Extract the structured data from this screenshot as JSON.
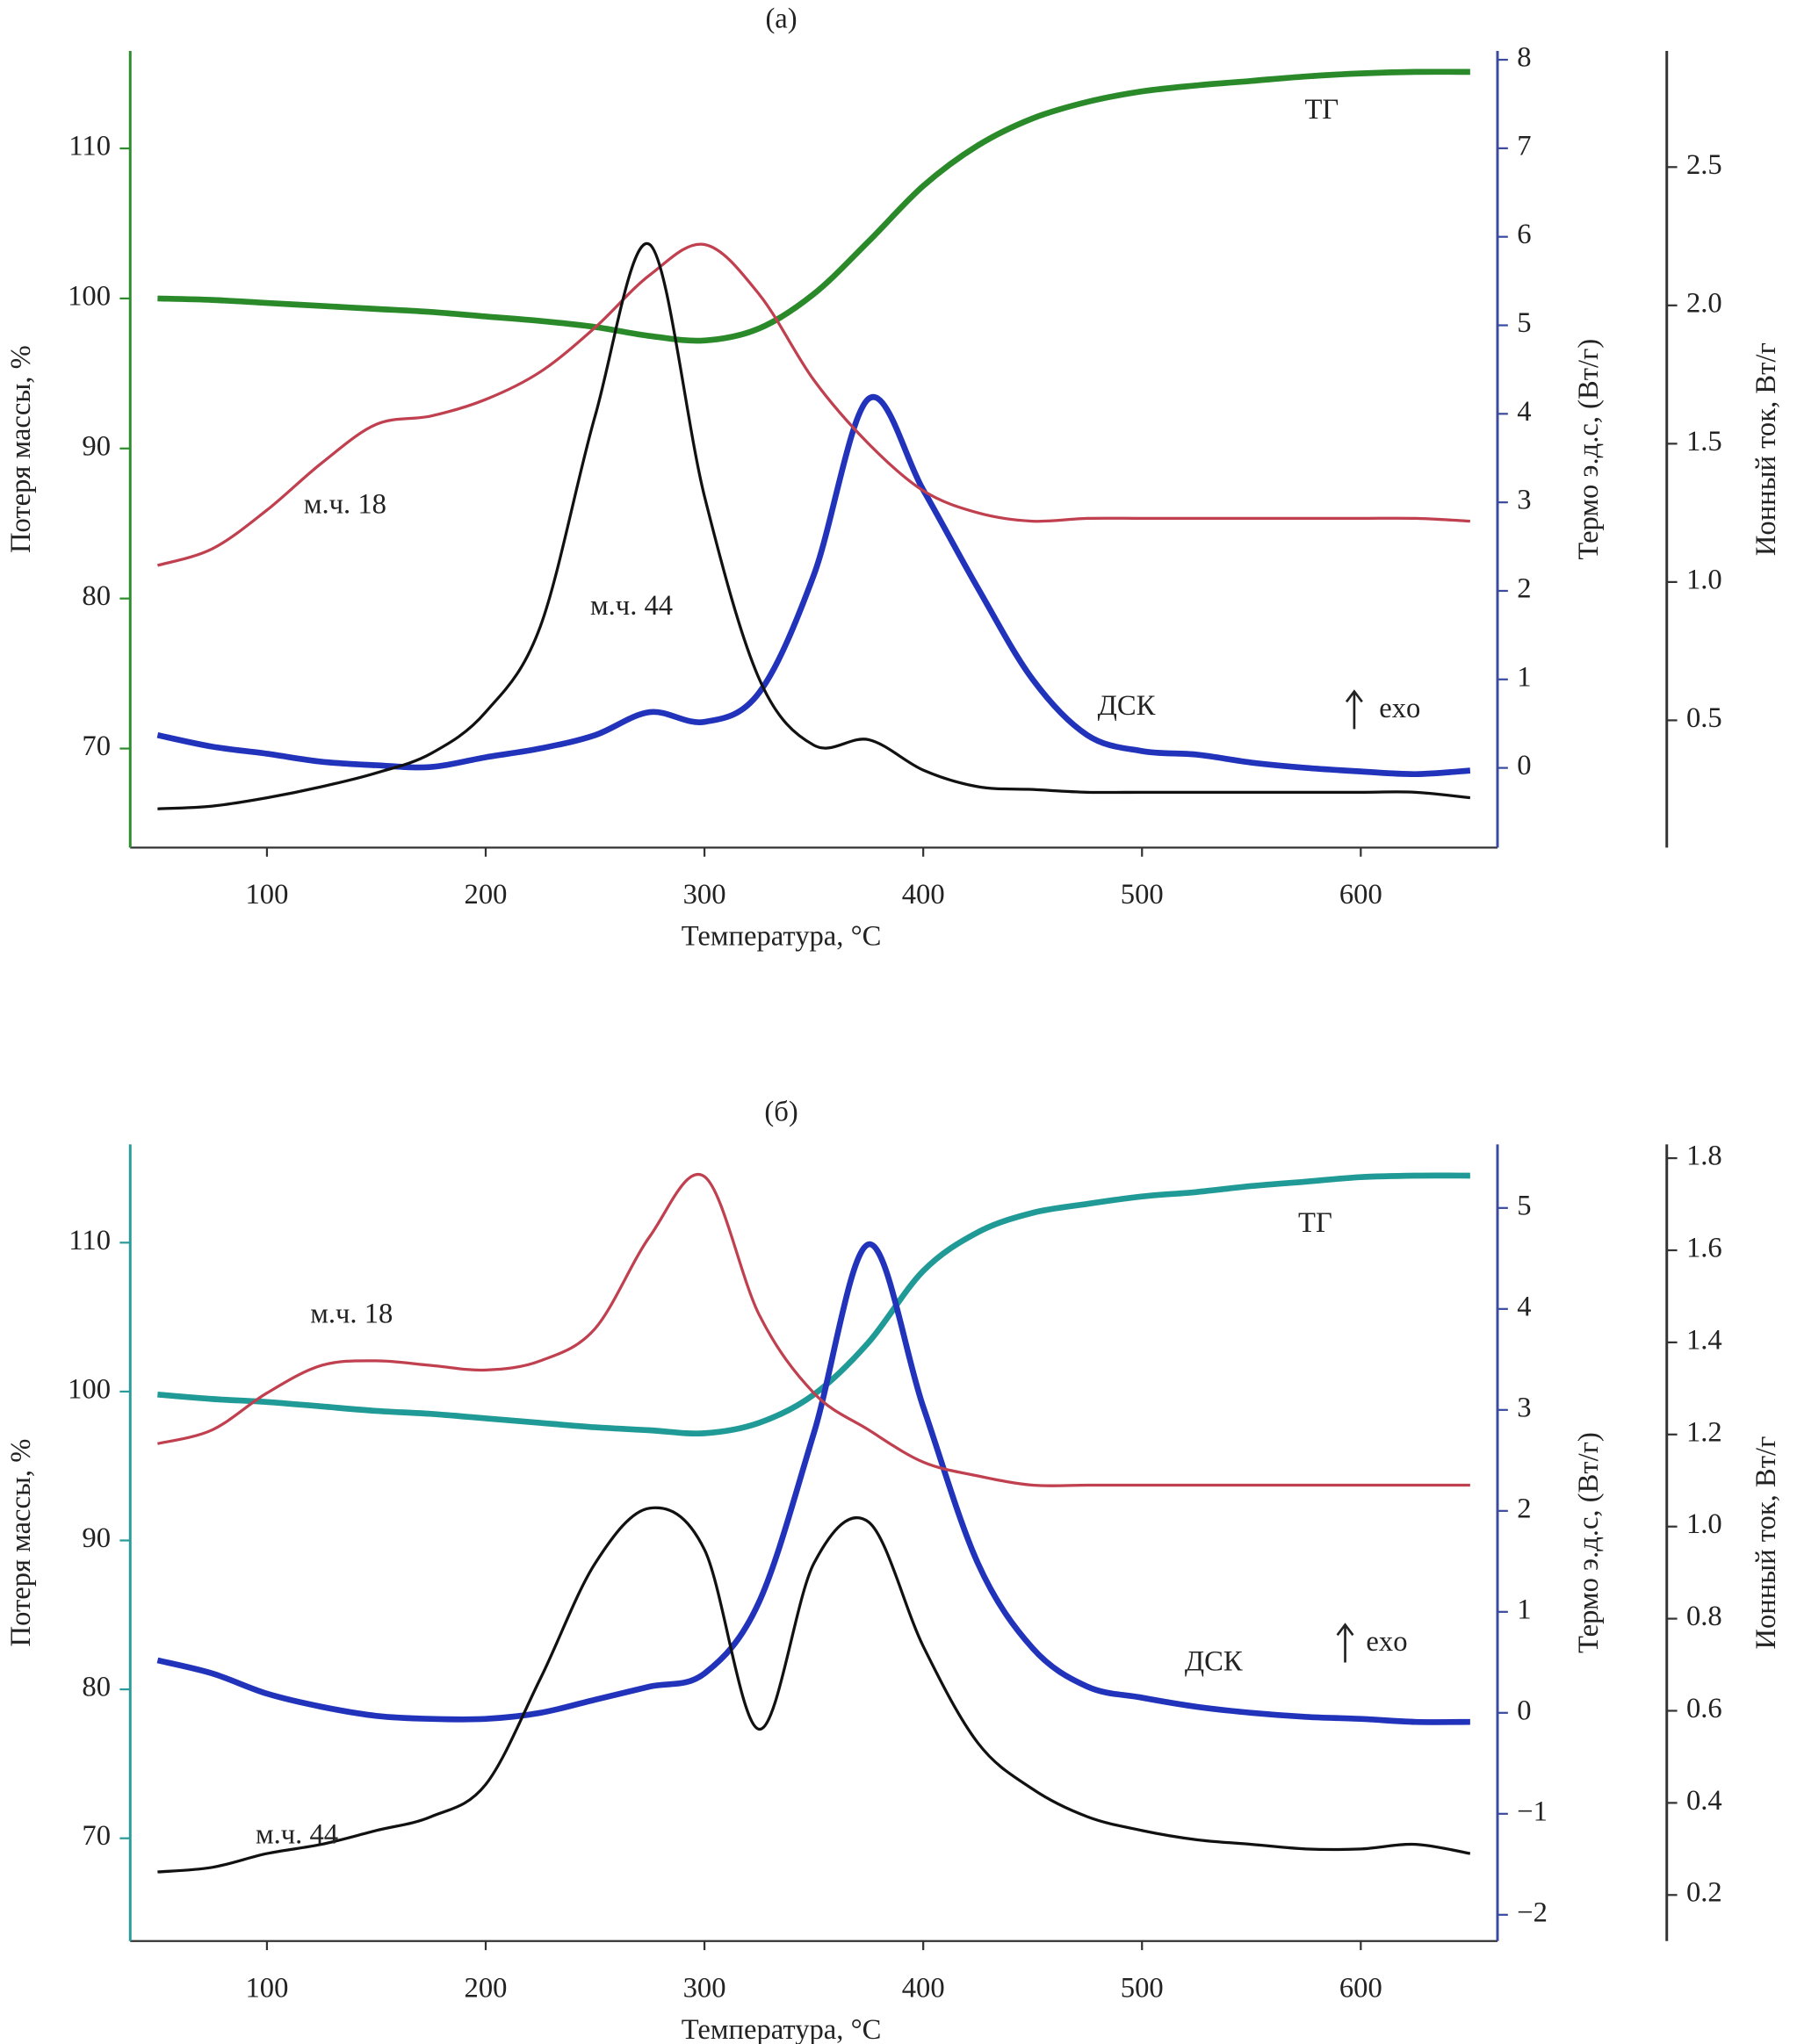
{
  "chart_data": [
    {
      "type": "line",
      "title": "(а)",
      "xlabel": "Температура, °C",
      "ylabel": "Потеря массы, %",
      "y2label": "Термо э.д.с, (Вт/г)",
      "y3label": "Ионный ток, Вт/г",
      "x": [
        50,
        75,
        100,
        125,
        150,
        175,
        200,
        225,
        250,
        275,
        300,
        325,
        350,
        375,
        400,
        425,
        450,
        475,
        500,
        525,
        550,
        575,
        600,
        625,
        650
      ],
      "xlim": [
        37.5,
        662.5
      ],
      "xticks": [
        100,
        200,
        300,
        400,
        500,
        600
      ],
      "ylim": [
        63.4,
        116.5
      ],
      "yticks": [
        70,
        80,
        90,
        100,
        110
      ],
      "y_axis_color": "#2e8b2e",
      "y2lim": [
        -0.9,
        8.1
      ],
      "y2ticks": [
        0,
        1,
        2,
        3,
        4,
        5,
        6,
        7,
        8
      ],
      "y2_axis_color": "#3a4aa0",
      "y3lim": [
        0.04,
        2.92
      ],
      "y3ticks": [
        0.5,
        {
          "value": 1,
          "label": "1.0"
        },
        1.5,
        {
          "value": 2,
          "label": "2.0"
        },
        2.5
      ],
      "y3_axis_color": "#333333",
      "series": [
        {
          "name": "ТГ",
          "color": "#2a8a2a",
          "axis": "y",
          "values": [
            100.0,
            99.9,
            99.7,
            99.5,
            99.3,
            99.1,
            98.8,
            98.5,
            98.1,
            97.5,
            97.2,
            98.0,
            100.3,
            103.8,
            107.5,
            110.2,
            112.0,
            113.1,
            113.8,
            114.2,
            114.5,
            114.8,
            115.0,
            115.1,
            115.1
          ]
        },
        {
          "name": "ДСК",
          "color": "#2233bb",
          "axis": "y2",
          "values": [
            0.37,
            0.24,
            0.16,
            0.07,
            0.03,
            0.01,
            0.12,
            0.22,
            0.37,
            0.63,
            0.52,
            0.85,
            2.18,
            4.17,
            3.14,
            2.03,
            1.0,
            0.37,
            0.19,
            0.15,
            0.06,
            0,
            -0.04,
            -0.07,
            -0.03
          ]
        },
        {
          "name": "м.ч. 18",
          "color": "#c0404f",
          "axis": "y3",
          "values": [
            1.06,
            1.12,
            1.26,
            1.43,
            1.57,
            1.6,
            1.66,
            1.76,
            1.92,
            2.11,
            2.22,
            2.04,
            1.73,
            1.5,
            1.33,
            1.25,
            1.22,
            1.23,
            1.23,
            1.23,
            1.23,
            1.23,
            1.23,
            1.23,
            1.22
          ]
        },
        {
          "name": "м.ч. 44",
          "color": "#111111",
          "axis": "y3",
          "values": [
            0.18,
            0.19,
            0.22,
            0.26,
            0.31,
            0.38,
            0.53,
            0.84,
            1.6,
            2.22,
            1.31,
            0.65,
            0.41,
            0.43,
            0.32,
            0.26,
            0.25,
            0.24,
            0.24,
            0.24,
            0.24,
            0.24,
            0.24,
            0.24,
            0.22
          ]
        }
      ],
      "annotation": "exo"
    },
    {
      "type": "line",
      "title": "(б)",
      "xlabel": "Температура, °C",
      "ylabel": "Потеря массы, %",
      "y2label": "Термо э.д.с, (Вт/г)",
      "y3label": "Ионный ток, Вт/г",
      "x": [
        50,
        75,
        100,
        125,
        150,
        175,
        200,
        225,
        250,
        275,
        300,
        325,
        350,
        375,
        400,
        425,
        450,
        475,
        500,
        525,
        550,
        575,
        600,
        625,
        650
      ],
      "xlim": [
        37.5,
        662.5
      ],
      "xticks": [
        100,
        200,
        300,
        400,
        500,
        600
      ],
      "ylim": [
        63.1,
        116.6
      ],
      "yticks": [
        70,
        80,
        90,
        100,
        110
      ],
      "y_axis_color": "#2a9a9a",
      "y2lim": [
        -2.26,
        5.63
      ],
      "y2ticks": [
        {
          "value": -2,
          "label": "−2"
        },
        {
          "value": -1,
          "label": "−1"
        },
        0,
        1,
        2,
        3,
        4,
        5
      ],
      "y2_axis_color": "#3a4aa0",
      "y3lim": [
        0.1,
        1.83
      ],
      "y3ticks": [
        0.2,
        0.4,
        0.6,
        0.8,
        {
          "value": 1,
          "label": "1.0"
        },
        1.2,
        1.4,
        1.6,
        1.8
      ],
      "y3_axis_color": "#333333",
      "series": [
        {
          "name": "ТГ",
          "color": "#1f9a96",
          "axis": "y",
          "values": [
            99.8,
            99.5,
            99.3,
            99.0,
            98.7,
            98.5,
            98.2,
            97.9,
            97.6,
            97.4,
            97.2,
            97.9,
            99.8,
            103.3,
            108.1,
            110.7,
            112.0,
            112.6,
            113.1,
            113.4,
            113.8,
            114.1,
            114.4,
            114.5,
            114.5
          ]
        },
        {
          "name": "ДСК",
          "color": "#2233bb",
          "axis": "y2",
          "values": [
            0.52,
            0.39,
            0.19,
            0.06,
            -0.03,
            -0.06,
            -0.06,
            0,
            0.13,
            0.26,
            0.39,
            1.1,
            2.77,
            4.64,
            3.03,
            1.48,
            0.64,
            0.26,
            0.15,
            0.06,
            0,
            -0.04,
            -0.06,
            -0.09,
            -0.09
          ]
        },
        {
          "name": "м.ч. 18",
          "color": "#c0404f",
          "axis": "y3",
          "values": [
            1.18,
            1.21,
            1.29,
            1.35,
            1.36,
            1.35,
            1.34,
            1.36,
            1.43,
            1.63,
            1.76,
            1.46,
            1.29,
            1.21,
            1.14,
            1.11,
            1.09,
            1.09,
            1.09,
            1.09,
            1.09,
            1.09,
            1.09,
            1.09,
            1.09
          ]
        },
        {
          "name": "м.ч. 44",
          "color": "#111111",
          "axis": "y3",
          "values": [
            0.25,
            0.26,
            0.29,
            0.31,
            0.34,
            0.37,
            0.44,
            0.67,
            0.92,
            1.04,
            0.95,
            0.56,
            0.92,
            1.01,
            0.74,
            0.53,
            0.43,
            0.37,
            0.34,
            0.32,
            0.31,
            0.3,
            0.3,
            0.31,
            0.29
          ]
        }
      ],
      "annotation": "exo"
    }
  ]
}
